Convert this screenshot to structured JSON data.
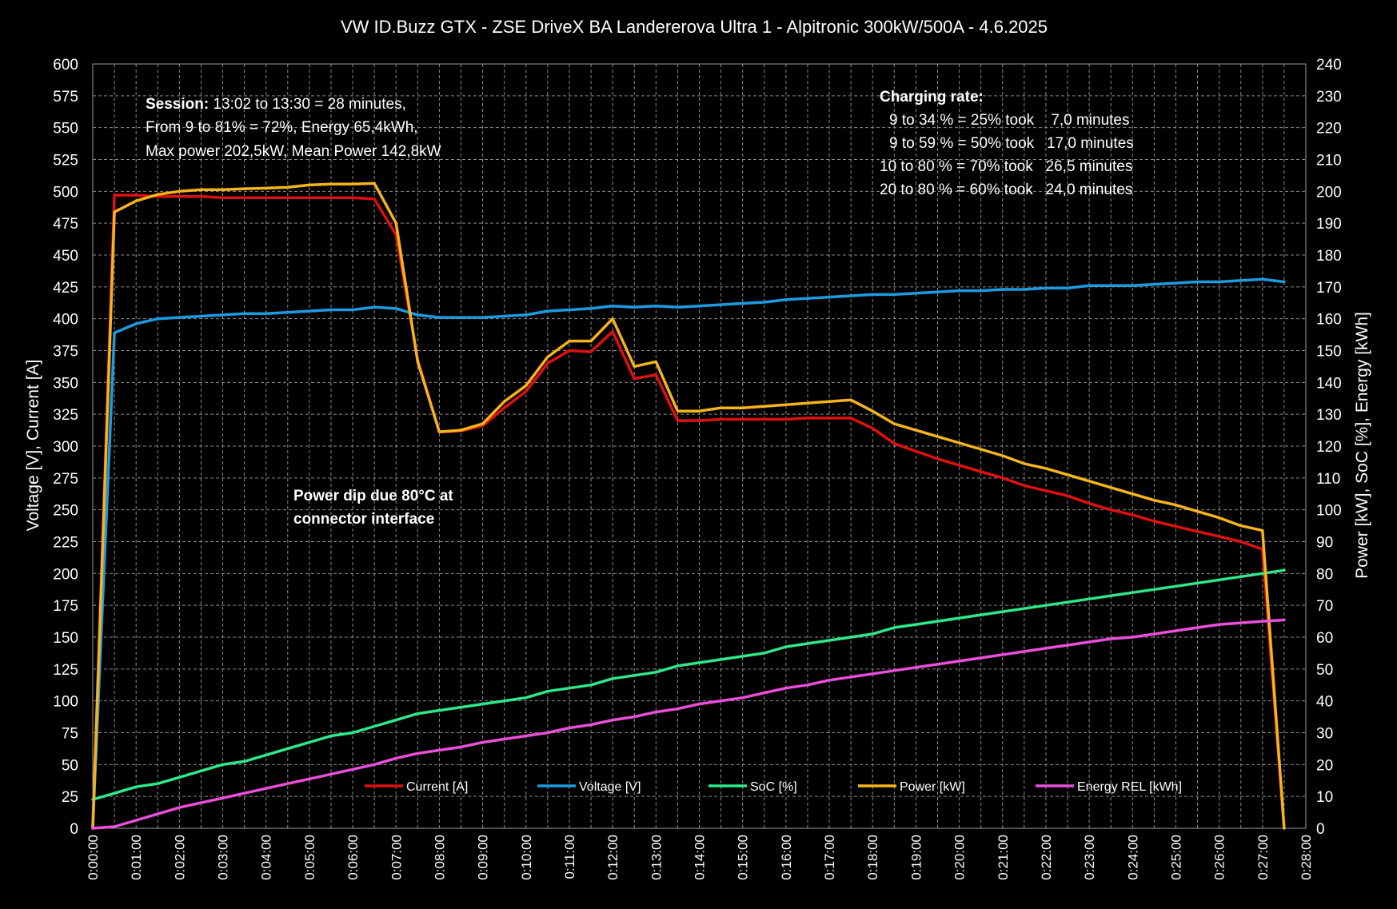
{
  "chart_data": {
    "type": "line",
    "title": "VW ID.Buzz GTX - ZSE DriveX BA Landererova Ultra 1 - Alpitronic 300kW/500A - 4.6.2025",
    "ylabel_left": "Voltage [V], Current [A]",
    "ylabel_right": "Power [kW], SoC [%], Energy [kWh]",
    "ylim_left": [
      0,
      600
    ],
    "ylim_right": [
      0,
      240
    ],
    "yticks_left": [
      "0",
      "25",
      "50",
      "75",
      "100",
      "125",
      "150",
      "175",
      "200",
      "225",
      "250",
      "275",
      "300",
      "325",
      "350",
      "375",
      "400",
      "425",
      "450",
      "475",
      "500",
      "525",
      "550",
      "575",
      "600"
    ],
    "yticks_right": [
      "0",
      "10",
      "20",
      "30",
      "40",
      "50",
      "60",
      "70",
      "80",
      "90",
      "100",
      "110",
      "120",
      "130",
      "140",
      "150",
      "160",
      "170",
      "180",
      "190",
      "200",
      "210",
      "220",
      "230",
      "240"
    ],
    "xlim_minutes": [
      0,
      28
    ],
    "xticks": [
      "0:00:00",
      "0:01:00",
      "0:02:00",
      "0:03:00",
      "0:04:00",
      "0:05:00",
      "0:06:00",
      "0:07:00",
      "0:08:00",
      "0:09:00",
      "0:10:00",
      "0:11:00",
      "0:12:00",
      "0:13:00",
      "0:14:00",
      "0:15:00",
      "0:16:00",
      "0:17:00",
      "0:18:00",
      "0:19:00",
      "0:20:00",
      "0:21:00",
      "0:22:00",
      "0:23:00",
      "0:24:00",
      "0:25:00",
      "0:26:00",
      "0:27:00",
      "0:28:00"
    ],
    "grid": true,
    "legend_position": "bottom-inside",
    "x_minutes": [
      0,
      0.5,
      1,
      1.5,
      2,
      2.5,
      3,
      3.5,
      4,
      4.5,
      5,
      5.5,
      6,
      6.5,
      7,
      7.5,
      8,
      8.5,
      9,
      9.5,
      10,
      10.5,
      11,
      11.5,
      12,
      12.5,
      13,
      13.5,
      14,
      14.5,
      15,
      15.5,
      16,
      16.5,
      17,
      17.5,
      18,
      18.5,
      19,
      19.5,
      20,
      20.5,
      21,
      21.5,
      22,
      22.5,
      23,
      23.5,
      24,
      24.5,
      25,
      25.5,
      26,
      26.5,
      27,
      27.5
    ],
    "series": [
      {
        "name": "Current [A]",
        "axis": "left",
        "color": "#e01010",
        "values": [
          0,
          497,
          497,
          496,
          496,
          496,
          495,
          495,
          495,
          495,
          495,
          495,
          495,
          494,
          466,
          368,
          311,
          312,
          316,
          330,
          343,
          365,
          375,
          374,
          390,
          353,
          356,
          320,
          320,
          321,
          321,
          321,
          321,
          322,
          322,
          322,
          314,
          302,
          296,
          290,
          285,
          280,
          275,
          269,
          265,
          261,
          255,
          250,
          246,
          241,
          237,
          233,
          229,
          225,
          219,
          0
        ]
      },
      {
        "name": "Voltage [V]",
        "axis": "left",
        "color": "#1e9be0",
        "values": [
          0,
          389,
          396,
          400,
          401,
          402,
          403,
          404,
          404,
          405,
          406,
          407,
          407,
          409,
          408,
          403,
          401,
          401,
          401,
          402,
          403,
          406,
          407,
          408,
          410,
          409,
          410,
          409,
          410,
          411,
          412,
          413,
          415,
          416,
          417,
          418,
          419,
          419,
          420,
          421,
          422,
          422,
          423,
          423,
          424,
          424,
          426,
          426,
          426,
          427,
          428,
          429,
          429,
          430,
          431,
          429
        ]
      },
      {
        "name": "SoC [%]",
        "axis": "right",
        "color": "#2ee88a",
        "values": [
          9,
          11,
          13,
          14,
          16,
          18,
          20,
          21,
          23,
          25,
          27,
          29,
          30,
          32,
          34,
          36,
          37,
          38,
          39,
          40,
          41,
          43,
          44,
          45,
          47,
          48,
          49,
          51,
          52,
          53,
          54,
          55,
          57,
          58,
          59,
          60,
          61,
          63,
          64,
          65,
          66,
          67,
          68,
          69,
          70,
          71,
          72,
          73,
          74,
          75,
          76,
          77,
          78,
          79,
          80,
          81
        ]
      },
      {
        "name": "Power [kW]",
        "axis": "right",
        "color": "#f5b41c",
        "values": [
          0,
          193.5,
          197,
          199,
          200,
          200.5,
          200.5,
          200.8,
          201,
          201.3,
          202,
          202.3,
          202.3,
          202.5,
          190,
          146.5,
          124.5,
          125,
          127,
          134,
          139,
          148,
          153,
          153,
          160,
          145,
          146.5,
          131,
          131,
          132,
          132,
          132.5,
          133,
          133.5,
          134,
          134.5,
          131,
          127,
          125,
          123,
          121,
          119,
          117,
          114.5,
          113,
          111,
          109,
          107,
          105,
          103,
          101.5,
          99.5,
          97.5,
          95,
          93.5,
          0
        ]
      },
      {
        "name": "Energy REL [kWh]",
        "axis": "right",
        "color": "#e94fd8",
        "values": [
          0,
          0.5,
          2.5,
          4.5,
          6.5,
          8,
          9.5,
          11,
          12.5,
          14,
          15.5,
          17,
          18.5,
          20,
          22,
          23.5,
          24.5,
          25.5,
          27,
          28,
          29,
          30,
          31.5,
          32.5,
          34,
          35,
          36.5,
          37.5,
          39,
          40,
          41,
          42.5,
          44,
          45,
          46.5,
          47.5,
          48.5,
          49.5,
          50.5,
          51.5,
          52.5,
          53.5,
          54.5,
          55.5,
          56.5,
          57.5,
          58.5,
          59.5,
          60,
          61,
          62,
          63,
          64,
          64.5,
          65,
          65.4
        ]
      }
    ],
    "annotations": {
      "session": [
        "Session:  13:02 to 13:30 = 28 minutes,",
        "From 9 to 81% = 72%, Energy 65,4kWh,",
        "Max power 202,5kW, Mean Power 142,8kW"
      ],
      "charging_rate_title": "Charging rate:",
      "charging_rate": [
        "9 to 34 % = 25% took    7,0 minutes",
        "9 to 59 % = 50% took   17,0 minutes",
        "10 to 80 % = 70% took   26,5 minutes",
        "20 to 80 % = 60% took   24,0 minutes"
      ],
      "power_dip": [
        "Power dip due 80°C at",
        "connector interface"
      ]
    }
  }
}
